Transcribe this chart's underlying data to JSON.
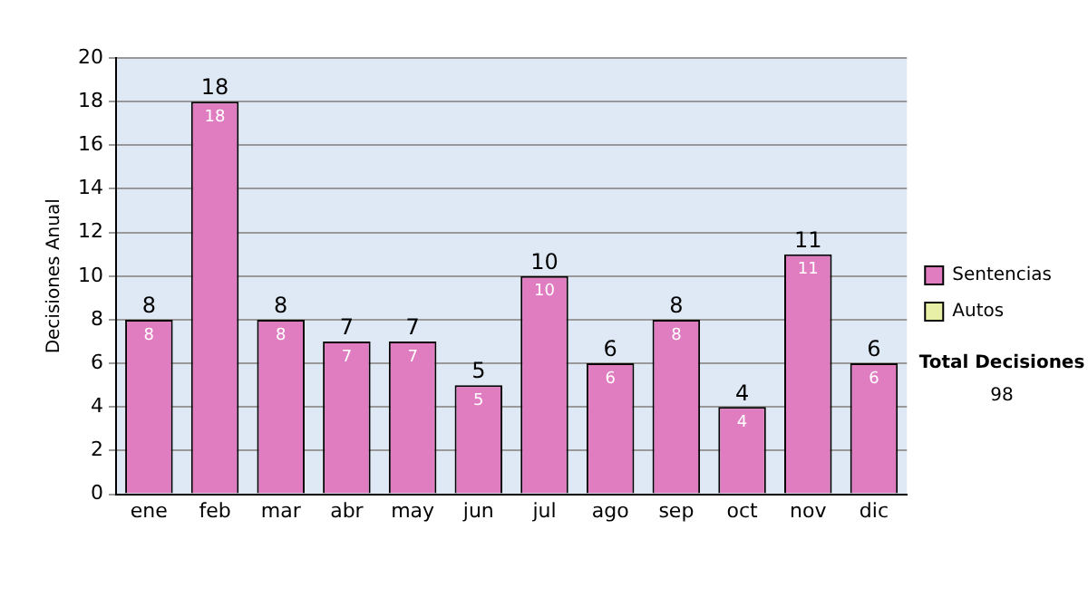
{
  "chart_data": {
    "type": "bar",
    "ylabel": "Decisiones Anual",
    "categories": [
      "ene",
      "feb",
      "mar",
      "abr",
      "may",
      "jun",
      "jul",
      "ago",
      "sep",
      "oct",
      "nov",
      "dic"
    ],
    "series": [
      {
        "name": "Sentencias",
        "color": "#e07cc0",
        "values": [
          8,
          18,
          8,
          7,
          7,
          5,
          10,
          6,
          8,
          4,
          11,
          6
        ]
      },
      {
        "name": "Autos",
        "color": "#e8f0a8",
        "values": [
          null,
          null,
          null,
          null,
          null,
          null,
          null,
          null,
          null,
          null,
          null,
          null
        ]
      }
    ],
    "stacked": true,
    "data_labels": true,
    "totals": [
      "8",
      "18",
      "8",
      "7",
      "7",
      "5",
      "10",
      "6",
      "8",
      "4",
      "11",
      "6"
    ],
    "ylim": [
      0,
      20
    ],
    "yticks": [
      0,
      2,
      4,
      6,
      8,
      10,
      12,
      14,
      16,
      18,
      20
    ],
    "grid": "y",
    "legend": "right",
    "annotations": [
      "Total Decisiones",
      "98"
    ]
  }
}
